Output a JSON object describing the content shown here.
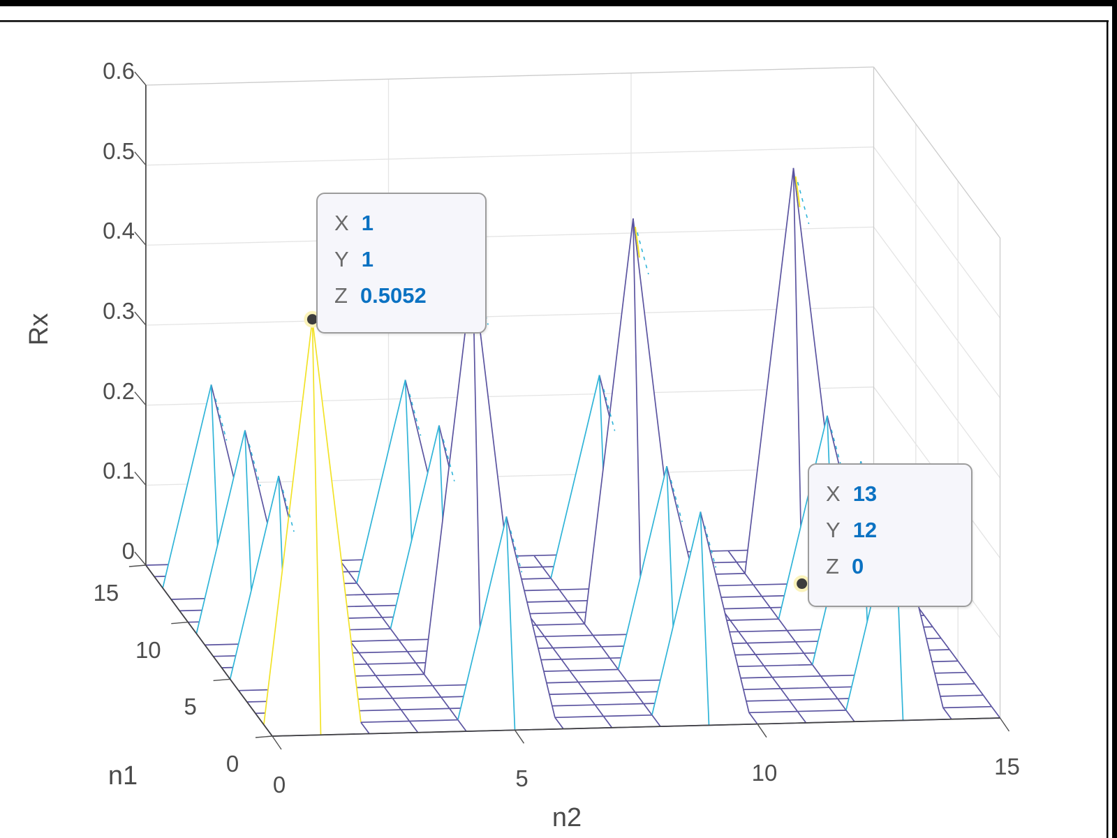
{
  "figure": {
    "background": "#ffffff"
  },
  "axis_labels": {
    "x": "n2",
    "y": "n1",
    "z": "Rx"
  },
  "colors": {
    "purple": "#5B54A0",
    "cyan": "#2FB4D8",
    "yellow": "#F2E227",
    "axis": "#404040",
    "tick": "#4f4f4f",
    "grid": "#E4E4E4",
    "floor_grid": "#E0E0E0",
    "box": "#CBCBCB",
    "frame": "#000000",
    "datatip_value": "#0B72C2",
    "datatip_label": "#6A6A6A",
    "anchor_ring": "#FBF3BB",
    "anchor_dot": "#3C3C3C"
  },
  "datatips": [
    {
      "x_label": "X",
      "x": "1",
      "y_label": "Y",
      "y": "1",
      "z_label": "Z",
      "z": "0.5052"
    },
    {
      "x_label": "X",
      "x": "13",
      "y_label": "Y",
      "y": "12",
      "z_label": "Z",
      "z": "0"
    }
  ],
  "chart_data": {
    "type": "mesh3d",
    "xlabel": "n2",
    "ylabel": "n1",
    "zlabel": "Rx",
    "x_range": [
      0,
      15
    ],
    "y_range": [
      0,
      15
    ],
    "zlim": [
      0,
      0.6
    ],
    "x_ticks": [
      0,
      5,
      10,
      15
    ],
    "y_ticks": [
      0,
      5,
      10,
      15
    ],
    "z_ticks": [
      "0",
      "0.1",
      "0.2",
      "0.3",
      "0.4",
      "0.5",
      "0.6"
    ],
    "grid": true,
    "peak_value": 0.5052,
    "secondary_peak_value": 0.2526,
    "peak_locations_note": "peaks at n1,n2 in {1,5,9,13}; diagonal peaks = 0.5052, off-diagonal = 0.2526",
    "marked_points": [
      {
        "x": 1,
        "y": 1,
        "z": 0.5052
      },
      {
        "x": 13,
        "y": 12,
        "z": 0
      }
    ],
    "z_matrix": [
      [
        0,
        0,
        0,
        0,
        0,
        0,
        0,
        0,
        0,
        0,
        0,
        0,
        0,
        0,
        0,
        0
      ],
      [
        0,
        0.5052,
        0,
        0,
        0,
        0.2526,
        0,
        0,
        0,
        0.2526,
        0,
        0,
        0,
        0.2526,
        0,
        0
      ],
      [
        0,
        0,
        0,
        0,
        0,
        0,
        0,
        0,
        0,
        0,
        0,
        0,
        0,
        0,
        0,
        0
      ],
      [
        0,
        0,
        0,
        0,
        0,
        0,
        0,
        0,
        0,
        0,
        0,
        0,
        0,
        0,
        0,
        0
      ],
      [
        0,
        0,
        0,
        0,
        0,
        0,
        0,
        0,
        0,
        0,
        0,
        0,
        0,
        0,
        0,
        0
      ],
      [
        0,
        0.2526,
        0,
        0,
        0,
        0.5052,
        0,
        0,
        0,
        0.2526,
        0,
        0,
        0,
        0.2526,
        0,
        0
      ],
      [
        0,
        0,
        0,
        0,
        0,
        0,
        0,
        0,
        0,
        0,
        0,
        0,
        0,
        0,
        0,
        0
      ],
      [
        0,
        0,
        0,
        0,
        0,
        0,
        0,
        0,
        0,
        0,
        0,
        0,
        0,
        0,
        0,
        0
      ],
      [
        0,
        0,
        0,
        0,
        0,
        0,
        0,
        0,
        0,
        0,
        0,
        0,
        0,
        0,
        0,
        0
      ],
      [
        0,
        0.2526,
        0,
        0,
        0,
        0.2526,
        0,
        0,
        0,
        0.5052,
        0,
        0,
        0,
        0.2526,
        0,
        0
      ],
      [
        0,
        0,
        0,
        0,
        0,
        0,
        0,
        0,
        0,
        0,
        0,
        0,
        0,
        0,
        0,
        0
      ],
      [
        0,
        0,
        0,
        0,
        0,
        0,
        0,
        0,
        0,
        0,
        0,
        0,
        0,
        0,
        0,
        0
      ],
      [
        0,
        0,
        0,
        0,
        0,
        0,
        0,
        0,
        0,
        0,
        0,
        0,
        0,
        0,
        0,
        0
      ],
      [
        0,
        0.2526,
        0,
        0,
        0,
        0.2526,
        0,
        0,
        0,
        0.2526,
        0,
        0,
        0,
        0.5052,
        0,
        0
      ],
      [
        0,
        0,
        0,
        0,
        0,
        0,
        0,
        0,
        0,
        0,
        0,
        0,
        0,
        0,
        0,
        0
      ],
      [
        0,
        0,
        0,
        0,
        0,
        0,
        0,
        0,
        0,
        0,
        0,
        0,
        0,
        0,
        0,
        0
      ]
    ]
  }
}
